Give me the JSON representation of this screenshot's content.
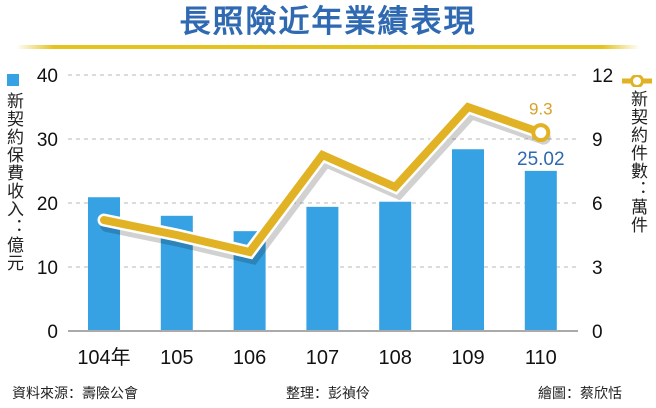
{
  "title": "長照險近年業績表現",
  "left_axis_label": "新契約保費收入：億元",
  "right_axis_label": "新契約件數：萬件",
  "footer": {
    "source": "資料來源：壽險公會",
    "editor": "整理：彭禎伶",
    "illustrator": "繪圖：蔡欣恬"
  },
  "colors": {
    "bar": "#36a2e4",
    "line": "#e1b224",
    "title": "#2f69b1",
    "label_bar": "#2f69b1",
    "label_line": "#d9a12a"
  },
  "chart_data": {
    "type": "bar+line",
    "title": "長照險近年業績表現",
    "categories": [
      "104年",
      "105",
      "106",
      "107",
      "108",
      "109",
      "110"
    ],
    "series": [
      {
        "name": "新契約保費收入（億元）",
        "type": "bar",
        "axis": "left",
        "values": [
          20.9,
          18.0,
          15.6,
          19.4,
          20.2,
          28.4,
          25.02
        ]
      },
      {
        "name": "新契約件數（萬件）",
        "type": "line",
        "axis": "right",
        "values": [
          5.2,
          4.5,
          3.7,
          8.25,
          6.75,
          10.5,
          9.3
        ]
      }
    ],
    "annotations": [
      {
        "category": "110",
        "series": "bar",
        "text": "25.02"
      },
      {
        "category": "110",
        "series": "line",
        "text": "9.3"
      }
    ],
    "ylabel_left": "新契約保費收入：億元",
    "ylabel_right": "新契約件數：萬件",
    "ylim_left": [
      0,
      40
    ],
    "ylim_right": [
      0,
      12
    ],
    "yticks_left": [
      "0",
      "10",
      "20",
      "30",
      "40"
    ],
    "yticks_right": [
      "0",
      "3",
      "6",
      "9",
      "12"
    ],
    "grid": true,
    "legend_position": "axis-side"
  }
}
